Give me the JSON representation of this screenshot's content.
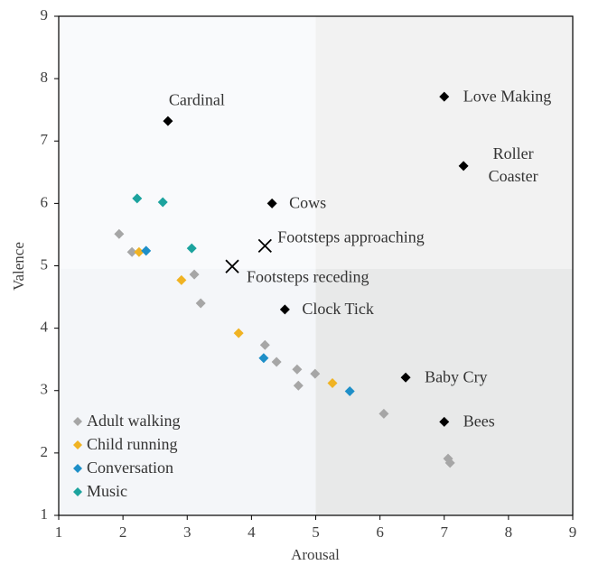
{
  "chart_data": {
    "type": "scatter",
    "xlabel": "Arousal",
    "ylabel": "Valence",
    "xlim": [
      1,
      9
    ],
    "ylim": [
      1,
      9
    ],
    "xticks": [
      1,
      2,
      3,
      4,
      5,
      6,
      7,
      8,
      9
    ],
    "yticks": [
      1,
      2,
      3,
      4,
      5,
      6,
      7,
      8,
      9
    ],
    "quadrant_split": [
      5,
      4.95
    ],
    "quadrant_colors": [
      "#f9fafc",
      "#f2f2f2",
      "#f4f6f9",
      "#e8e9e9"
    ],
    "legend": "lower left",
    "series": [
      {
        "name": "Adult walking",
        "color": "#a6a6a6",
        "x": [
          1.94,
          2.14,
          3.11,
          3.21,
          4.21,
          4.39,
          4.71,
          4.73,
          4.99,
          6.06,
          7.06,
          7.09
        ],
        "values": [
          5.51,
          5.22,
          4.86,
          4.4,
          3.73,
          3.46,
          3.34,
          3.08,
          3.27,
          2.63,
          1.91,
          1.84
        ]
      },
      {
        "name": "Child running",
        "color": "#f0b323",
        "x": [
          2.25,
          2.91,
          3.8,
          5.26
        ],
        "values": [
          5.22,
          4.77,
          3.92,
          3.12
        ]
      },
      {
        "name": "Conversation",
        "color": "#1e8fc8",
        "x": [
          2.36,
          4.19,
          5.53
        ],
        "values": [
          5.24,
          3.52,
          2.99
        ]
      },
      {
        "name": "Music",
        "color": "#1ca39e",
        "x": [
          2.22,
          2.62,
          3.07
        ],
        "values": [
          6.08,
          6.02,
          5.28
        ]
      }
    ],
    "annotations": [
      {
        "text": "Cardinal",
        "x": 2.7,
        "y": 7.32,
        "marker": "diamond"
      },
      {
        "text": "Love Making",
        "x": 7.0,
        "y": 7.71,
        "marker": "diamond"
      },
      {
        "text": "Roller Coaster",
        "x": 7.3,
        "y": 6.6,
        "marker": "diamond"
      },
      {
        "text": "Cows",
        "x": 4.32,
        "y": 6.0,
        "marker": "diamond"
      },
      {
        "text": "Footsteps approaching",
        "x": 4.21,
        "y": 5.32,
        "marker": "x"
      },
      {
        "text": "Footsteps receding",
        "x": 3.7,
        "y": 4.99,
        "marker": "x"
      },
      {
        "text": "Clock Tick",
        "x": 4.52,
        "y": 4.3,
        "marker": "diamond"
      },
      {
        "text": "Baby Cry",
        "x": 6.4,
        "y": 3.21,
        "marker": "diamond"
      },
      {
        "text": "Bees",
        "x": 7.0,
        "y": 2.5,
        "marker": "diamond"
      }
    ]
  }
}
